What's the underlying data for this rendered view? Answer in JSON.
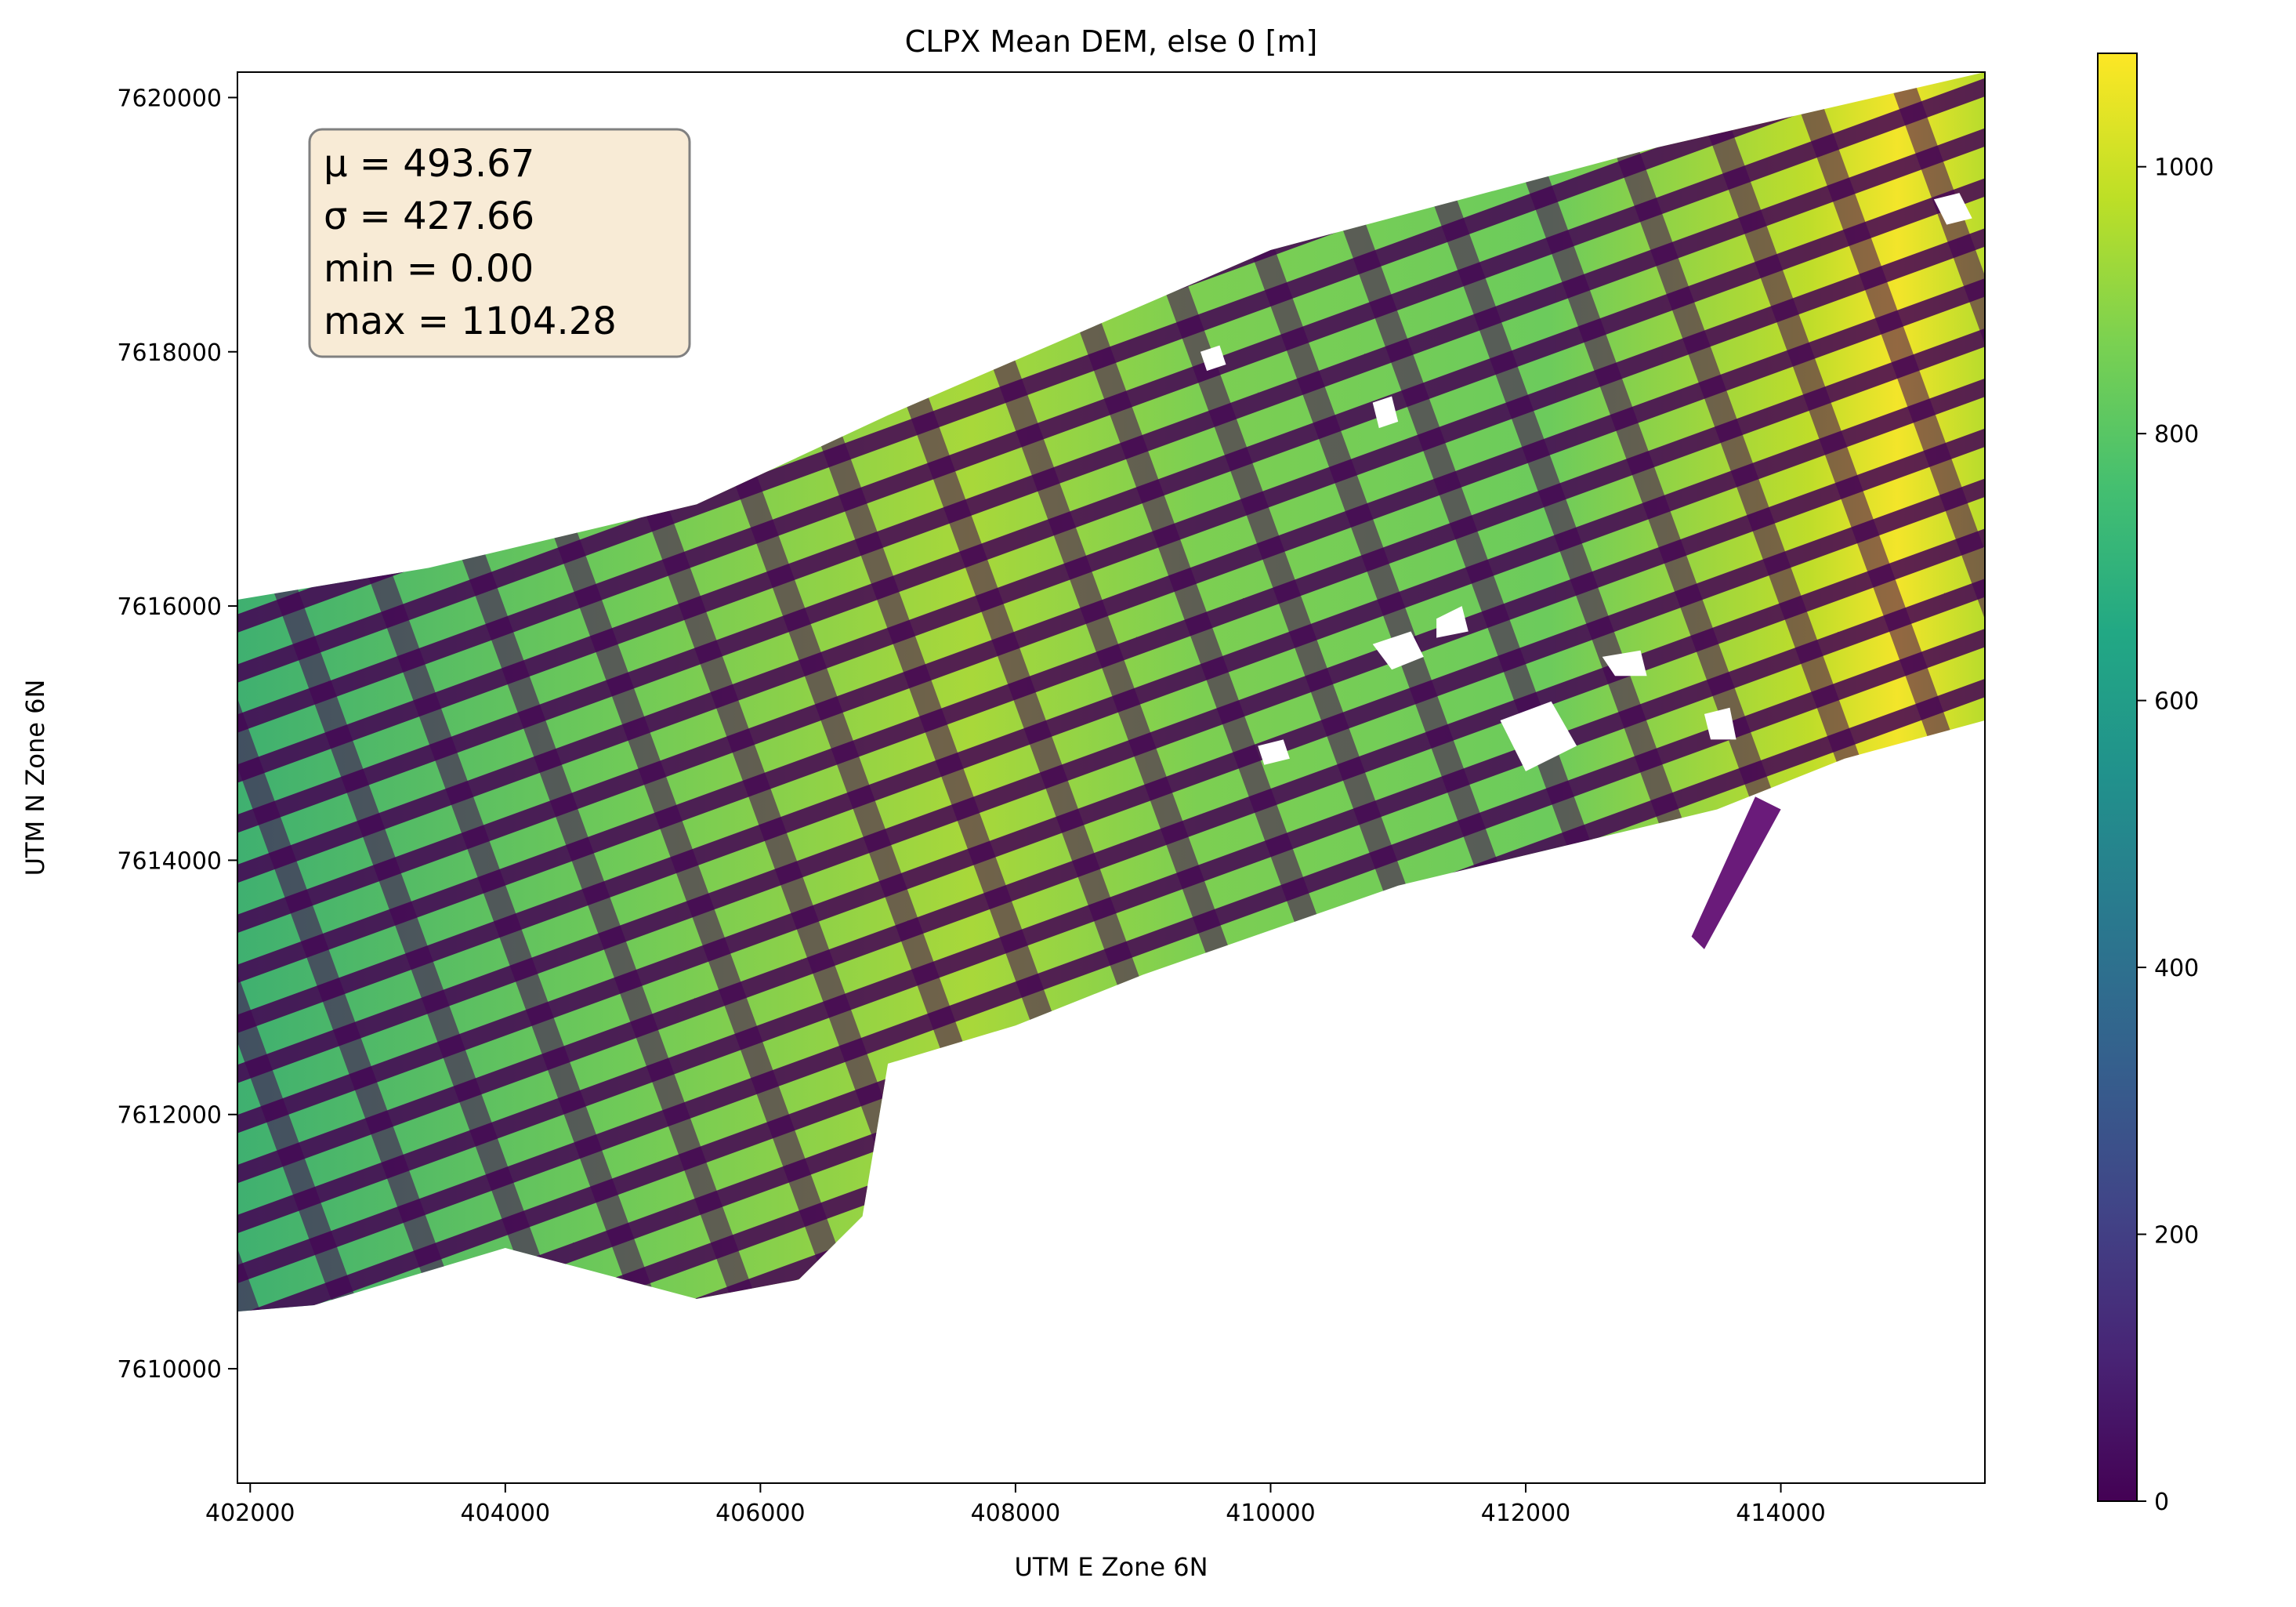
{
  "chart_data": {
    "type": "heatmap",
    "title": "CLPX Mean DEM, else 0 [m]",
    "xlabel": "UTM E Zone 6N",
    "ylabel": "UTM N Zone 6N",
    "xlim": [
      401900,
      415600
    ],
    "ylim": [
      7609100,
      7620200
    ],
    "x_ticks": [
      402000,
      404000,
      406000,
      408000,
      410000,
      412000,
      414000
    ],
    "y_ticks": [
      7610000,
      7612000,
      7614000,
      7616000,
      7618000,
      7620000
    ],
    "colorbar": {
      "colormap": "viridis",
      "range": [
        0,
        1085
      ],
      "ticks": [
        0,
        200,
        400,
        600,
        800,
        1000
      ]
    },
    "stats_box": {
      "lines": [
        "μ = 493.67",
        "σ = 427.66",
        "min = 0.00",
        "max = 1104.28"
      ]
    },
    "extent_polygon": [
      [
        401900,
        7616050
      ],
      [
        403400,
        7616300
      ],
      [
        405500,
        7616800
      ],
      [
        407000,
        7617500
      ],
      [
        410000,
        7618800
      ],
      [
        413000,
        7619600
      ],
      [
        415600,
        7620200
      ],
      [
        415600,
        7615100
      ],
      [
        414500,
        7614800
      ],
      [
        413500,
        7614400
      ],
      [
        411000,
        7613800
      ],
      [
        409000,
        7613100
      ],
      [
        408000,
        7612700
      ],
      [
        407000,
        7612400
      ],
      [
        406800,
        7611200
      ],
      [
        406300,
        7610700
      ],
      [
        405500,
        7610550
      ],
      [
        404000,
        7610950
      ],
      [
        402500,
        7610500
      ],
      [
        401900,
        7610450
      ]
    ],
    "extent_spur": [
      [
        413800,
        7614500
      ],
      [
        414000,
        7614400
      ],
      [
        413400,
        7613300
      ],
      [
        413300,
        7613400
      ]
    ],
    "water_bodies": [
      [
        [
          410800,
          7615700
        ],
        [
          411100,
          7615800
        ],
        [
          411200,
          7615600
        ],
        [
          410950,
          7615500
        ]
      ],
      [
        [
          411300,
          7615900
        ],
        [
          411500,
          7616000
        ],
        [
          411550,
          7615800
        ],
        [
          411300,
          7615750
        ]
      ],
      [
        [
          411800,
          7615100
        ],
        [
          412200,
          7615250
        ],
        [
          412400,
          7614900
        ],
        [
          412000,
          7614700
        ]
      ],
      [
        [
          412600,
          7615600
        ],
        [
          412900,
          7615650
        ],
        [
          412950,
          7615450
        ],
        [
          412700,
          7615450
        ]
      ],
      [
        [
          413400,
          7615150
        ],
        [
          413600,
          7615200
        ],
        [
          413650,
          7614950
        ],
        [
          413450,
          7614950
        ]
      ],
      [
        [
          415200,
          7619200
        ],
        [
          415400,
          7619250
        ],
        [
          415500,
          7619050
        ],
        [
          415300,
          7619000
        ]
      ],
      [
        [
          409450,
          7618000
        ],
        [
          409600,
          7618050
        ],
        [
          409650,
          7617900
        ],
        [
          409500,
          7617850
        ]
      ],
      [
        [
          410800,
          7617600
        ],
        [
          410950,
          7617650
        ],
        [
          411000,
          7617450
        ],
        [
          410850,
          7617400
        ]
      ],
      [
        [
          409900,
          7614900
        ],
        [
          410100,
          7614950
        ],
        [
          410150,
          7614800
        ],
        [
          409950,
          7614750
        ]
      ]
    ]
  }
}
